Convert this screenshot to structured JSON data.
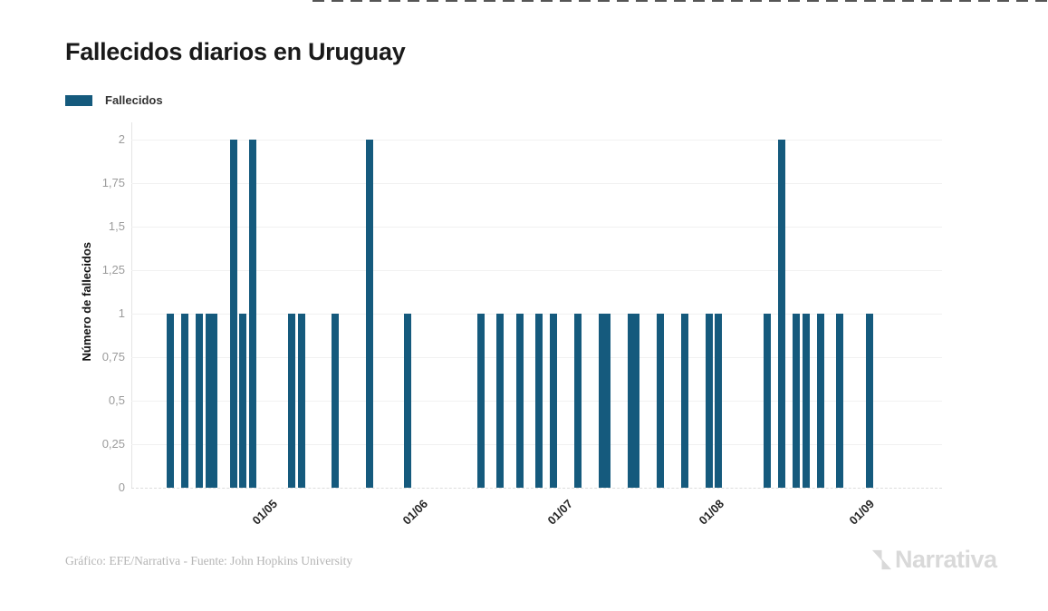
{
  "chart": {
    "title": "Fallecidos diarios en Uruguay",
    "legend": {
      "label": "Fallecidos"
    },
    "y_axis_title": "Número de fallecidos",
    "footer_credit": "Gráfico: EFE/Narrativa - Fuente: John Hopkins University",
    "logo_text": "Narrativa"
  },
  "colors": {
    "bar": "#155a7d",
    "title_text": "#1a1a1a",
    "y_tick_text": "#9b9b9b",
    "x_tick_text": "#262626",
    "gridline": "#f1f1f1",
    "axis_line": "#e4e4e4",
    "footer_text": "#b5b5b5",
    "logo_text": "#d9d9d9"
  },
  "chart_data": {
    "type": "bar",
    "title": "Fallecidos diarios en Uruguay",
    "series_name": "Fallecidos",
    "xlabel": "",
    "ylabel": "Número de fallecidos",
    "ylim": [
      0,
      2.1
    ],
    "grid": true,
    "legend_position": "top-left",
    "bar_color": "#155a7d",
    "date_format": "DD/MM",
    "x_domain_dates": [
      "03/04",
      "17/09"
    ],
    "x_ticks": {
      "labels": [
        "01/05",
        "01/06",
        "01/07",
        "01/08",
        "01/09"
      ]
    },
    "y_ticks": {
      "values": [
        0,
        0.25,
        0.5,
        0.75,
        1,
        1.25,
        1.5,
        1.75,
        2
      ],
      "labels": [
        "0",
        "0,25",
        "0,5",
        "0,75",
        "1",
        "1,25",
        "1,5",
        "1,75",
        "2"
      ]
    },
    "points": [
      {
        "date": "11/04",
        "value": 1
      },
      {
        "date": "14/04",
        "value": 1
      },
      {
        "date": "17/04",
        "value": 1
      },
      {
        "date": "19/04",
        "value": 1
      },
      {
        "date": "20/04",
        "value": 1
      },
      {
        "date": "24/04",
        "value": 2
      },
      {
        "date": "26/04",
        "value": 1
      },
      {
        "date": "28/04",
        "value": 2
      },
      {
        "date": "06/05",
        "value": 1
      },
      {
        "date": "08/05",
        "value": 1
      },
      {
        "date": "15/05",
        "value": 1
      },
      {
        "date": "22/05",
        "value": 2
      },
      {
        "date": "30/05",
        "value": 1
      },
      {
        "date": "14/06",
        "value": 1
      },
      {
        "date": "18/06",
        "value": 1
      },
      {
        "date": "22/06",
        "value": 1
      },
      {
        "date": "26/06",
        "value": 1
      },
      {
        "date": "29/06",
        "value": 1
      },
      {
        "date": "04/07",
        "value": 1
      },
      {
        "date": "09/07",
        "value": 1
      },
      {
        "date": "10/07",
        "value": 1
      },
      {
        "date": "15/07",
        "value": 1
      },
      {
        "date": "16/07",
        "value": 1
      },
      {
        "date": "21/07",
        "value": 1
      },
      {
        "date": "26/07",
        "value": 1
      },
      {
        "date": "31/07",
        "value": 1
      },
      {
        "date": "02/08",
        "value": 1
      },
      {
        "date": "12/08",
        "value": 1
      },
      {
        "date": "15/08",
        "value": 2
      },
      {
        "date": "18/08",
        "value": 1
      },
      {
        "date": "20/08",
        "value": 1
      },
      {
        "date": "23/08",
        "value": 1
      },
      {
        "date": "27/08",
        "value": 1
      },
      {
        "date": "02/09",
        "value": 1
      }
    ]
  }
}
